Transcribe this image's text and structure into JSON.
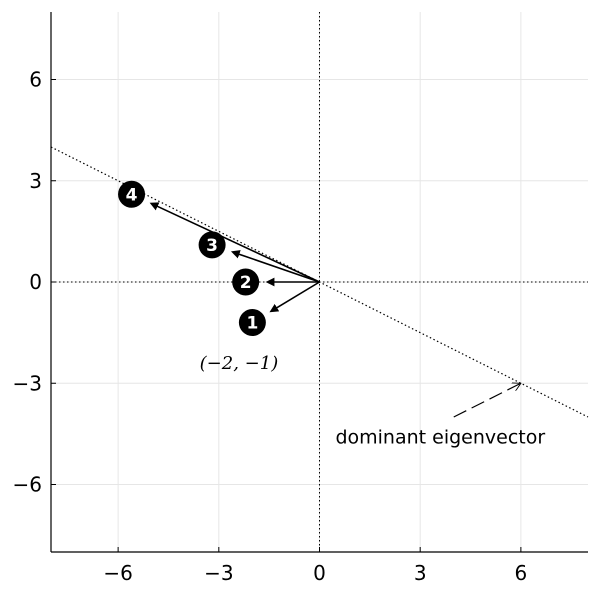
{
  "chart_data": {
    "type": "scatter",
    "title": "",
    "xlabel": "",
    "ylabel": "",
    "xlim": [
      -8,
      8
    ],
    "ylim": [
      -8,
      8
    ],
    "x_ticks": [
      -6,
      -3,
      0,
      3,
      6
    ],
    "x_tick_labels": [
      "−6",
      "−3",
      "0",
      "3",
      "6"
    ],
    "y_ticks": [
      -6,
      -3,
      0,
      3,
      6
    ],
    "y_tick_labels": [
      "−6",
      "−3",
      "0",
      "3",
      "6"
    ],
    "grid": true,
    "origin": [
      0,
      0
    ],
    "vectors": [
      {
        "label": "1",
        "x": -2,
        "y": -1.2
      },
      {
        "label": "2",
        "x": -2.2,
        "y": 0
      },
      {
        "label": "3",
        "x": -3.2,
        "y": 1.1
      },
      {
        "label": "4",
        "x": -5.6,
        "y": 2.6
      }
    ],
    "eigen_line": {
      "x1": -8,
      "y1": 4,
      "x2": 8,
      "y2": -4
    },
    "annotations": [
      {
        "text": "(−2, −1)",
        "x": -2.4,
        "y": -2.4
      },
      {
        "text": "dominant eigenvector",
        "x": 3.6,
        "y": -4.6,
        "arrow_from": [
          4,
          -4
        ],
        "arrow_to": [
          6,
          -3
        ]
      }
    ],
    "colors": {
      "ink": "#000000",
      "grid": "#e6e6e6",
      "marker_text": "#ffffff"
    }
  }
}
